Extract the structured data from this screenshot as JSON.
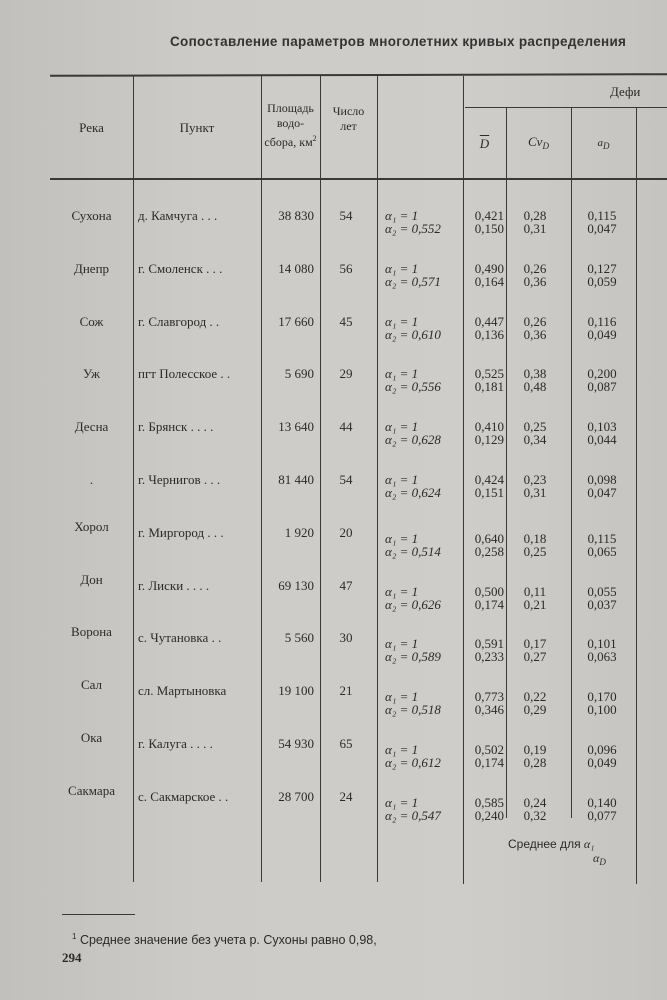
{
  "page": {
    "title": "Сопоставление параметров многолетних кривых распределения",
    "page_number": "294",
    "footnote_mark": "1",
    "footnote": "Среднее значение без учета р. Сухоны равно 0,98,"
  },
  "table": {
    "headers": {
      "river": "Река",
      "point": "Пункт",
      "area_line1": "Площадь",
      "area_line2": "водо-",
      "area_line3": "сбора, км",
      "area_sup": "2",
      "years_line1": "Число",
      "years_line2": "лет",
      "group": "Дефи",
      "d_mean": "D",
      "cv": "Cv",
      "cv_sub": "D",
      "a": "a",
      "a_sub": "D"
    },
    "rows": [
      {
        "river": "Сухона",
        "point": "д. Камчуга . . .",
        "area": "38 830",
        "years": "54",
        "a1": "α₁ = 1",
        "a2": "α₂ = 0,552",
        "D": [
          "0,421",
          "0,150"
        ],
        "Cv": [
          "0,28",
          "0,31"
        ],
        "aD": [
          "0,115",
          "0,047"
        ]
      },
      {
        "river": "Днепр",
        "point": "г. Смоленск . . .",
        "area": "14 080",
        "years": "56",
        "a1": "α₁ = 1",
        "a2": "α₂ = 0,571",
        "D": [
          "0,490",
          "0,164"
        ],
        "Cv": [
          "0,26",
          "0,36"
        ],
        "aD": [
          "0,127",
          "0,059"
        ]
      },
      {
        "river": "Сож",
        "point": "г. Славгород . .",
        "area": "17 660",
        "years": "45",
        "a1": "α₁ = 1",
        "a2": "α₂ = 0,610",
        "D": [
          "0,447",
          "0,136"
        ],
        "Cv": [
          "0,26",
          "0,36"
        ],
        "aD": [
          "0,116",
          "0,049"
        ]
      },
      {
        "river": "Уж",
        "point": "пгт Полесское . .",
        "area": "5 690",
        "years": "29",
        "a1": "α₁ = 1",
        "a2": "α₂ = 0,556",
        "D": [
          "0,525",
          "0,181"
        ],
        "Cv": [
          "0,38",
          "0,48"
        ],
        "aD": [
          "0,200",
          "0,087"
        ]
      },
      {
        "river": "Десна",
        "point": "г. Брянск . . . .",
        "area": "13 640",
        "years": "44",
        "a1": "α₁ = 1",
        "a2": "α₂ = 0,628",
        "D": [
          "0,410",
          "0,129"
        ],
        "Cv": [
          "0,25",
          "0,34"
        ],
        "aD": [
          "0,103",
          "0,044"
        ]
      },
      {
        "river": ".",
        "point": "г. Чернигов . . .",
        "area": "81 440",
        "years": "54",
        "a1": "α₁ = 1",
        "a2": "α₂ = 0,624",
        "D": [
          "0,424",
          "0,151"
        ],
        "Cv": [
          "0,23",
          "0,31"
        ],
        "aD": [
          "0,098",
          "0,047"
        ]
      },
      {
        "river": "Хорол",
        "point": "г. Миргород . . .",
        "area": "1 920",
        "years": "20",
        "a1": "α₁ = 1",
        "a2": "α₂ = 0,514",
        "D": [
          "0,640",
          "0,258"
        ],
        "Cv": [
          "0,18",
          "0,25"
        ],
        "aD": [
          "0,115",
          "0,065"
        ]
      },
      {
        "river": "Дон",
        "point": "г. Лиски . . . .",
        "area": "69 130",
        "years": "47",
        "a1": "α₁ = 1",
        "a2": "α₂ = 0,626",
        "D": [
          "0,500",
          "0,174"
        ],
        "Cv": [
          "0,11",
          "0,21"
        ],
        "aD": [
          "0,055",
          "0,037"
        ]
      },
      {
        "river": "Ворона",
        "point": "с. Чутановка . .",
        "area": "5 560",
        "years": "30",
        "a1": "α₁ = 1",
        "a2": "α₂ = 0,589",
        "D": [
          "0,591",
          "0,233"
        ],
        "Cv": [
          "0,17",
          "0,27"
        ],
        "aD": [
          "0,101",
          "0,063"
        ]
      },
      {
        "river": "Сал",
        "point": "сл. Мартыновка",
        "area": "19 100",
        "years": "21",
        "a1": "α₁ = 1",
        "a2": "α₂ = 0,518",
        "D": [
          "0,773",
          "0,346"
        ],
        "Cv": [
          "0,22",
          "0,29"
        ],
        "aD": [
          "0,170",
          "0,100"
        ]
      },
      {
        "river": "Ока",
        "point": "г. Калуга . . . .",
        "area": "54 930",
        "years": "65",
        "a1": "α₁ = 1",
        "a2": "α₂ = 0,612",
        "D": [
          "0,502",
          "0,174"
        ],
        "Cv": [
          "0,19",
          "0,28"
        ],
        "aD": [
          "0,096",
          "0,049"
        ]
      },
      {
        "river": "Сакмара",
        "point": "с. Сакмарское . .",
        "area": "28 700",
        "years": "24",
        "a1": "α₁ = 1",
        "a2": "α₂ = 0,547",
        "D": [
          "0,585",
          "0,240"
        ],
        "Cv": [
          "0,24",
          "0,32"
        ],
        "aD": [
          "0,140",
          "0,077"
        ]
      }
    ],
    "summary": {
      "label": "Среднее для",
      "a1": "α₁",
      "aD": "α",
      "aD_sub": "D"
    }
  }
}
